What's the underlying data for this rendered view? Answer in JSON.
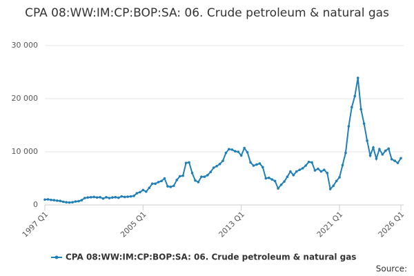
{
  "chart_data": {
    "type": "line",
    "title": "CPA 08:WW:IM:CP:BOP:SA: 06. Crude petroleum & natural gas",
    "categories": [
      "1997 Q1",
      null,
      null,
      null,
      null,
      null,
      null,
      null,
      null,
      null,
      null,
      null,
      null,
      null,
      null,
      null,
      null,
      null,
      null,
      null,
      null,
      null,
      null,
      null,
      null,
      null,
      null,
      null,
      null,
      null,
      null,
      null,
      "2005 Q1",
      null,
      null,
      null,
      null,
      null,
      null,
      null,
      null,
      null,
      null,
      null,
      null,
      null,
      null,
      null,
      null,
      null,
      null,
      null,
      null,
      null,
      null,
      null,
      null,
      null,
      null,
      null,
      null,
      null,
      null,
      null,
      "2013 Q1",
      null,
      null,
      null,
      null,
      null,
      null,
      null,
      null,
      null,
      null,
      null,
      null,
      null,
      null,
      null,
      null,
      null,
      null,
      null,
      null,
      null,
      null,
      null,
      null,
      null,
      null,
      null,
      null,
      null,
      null,
      null,
      "2021 Q1",
      null,
      null,
      null,
      null,
      null,
      null,
      null,
      null,
      null,
      null,
      null,
      null,
      null,
      null,
      null,
      null,
      null,
      null,
      null,
      "2026 Q1"
    ],
    "series": [
      {
        "name": "CPA 08:WW:IM:CP:BOP:SA: 06. Crude petroleum & natural gas",
        "color": "#1f7fb6",
        "values": [
          1000,
          1050,
          950,
          900,
          800,
          750,
          600,
          500,
          450,
          500,
          650,
          700,
          900,
          1300,
          1400,
          1450,
          1500,
          1400,
          1450,
          1200,
          1450,
          1300,
          1400,
          1450,
          1350,
          1600,
          1500,
          1550,
          1600,
          1700,
          2200,
          2400,
          2800,
          2500,
          3200,
          4000,
          4000,
          4300,
          4500,
          5000,
          3500,
          3400,
          3600,
          4700,
          5400,
          5500,
          7900,
          8000,
          6000,
          4600,
          4300,
          5300,
          5300,
          5600,
          6200,
          7000,
          7300,
          7700,
          8300,
          9800,
          10500,
          10400,
          10100,
          10000,
          9300,
          10700,
          9900,
          8000,
          7400,
          7600,
          7800,
          7100,
          5000,
          5100,
          4800,
          4500,
          3100,
          3800,
          4400,
          5300,
          6300,
          5600,
          6300,
          6600,
          6900,
          7400,
          8100,
          8000,
          6500,
          6800,
          6300,
          6600,
          6000,
          3000,
          3600,
          4500,
          5200,
          7500,
          9800,
          14800,
          18400,
          20500,
          23900,
          18000,
          15300,
          12100,
          9300,
          10800,
          8700,
          10500,
          9500,
          10200,
          10600,
          8600,
          8300,
          7900,
          8800
        ]
      }
    ],
    "ylim": [
      0,
      30000
    ],
    "yticks": [
      0,
      {
        "value": 10000,
        "label": "10 000"
      },
      {
        "value": 20000,
        "label": "20 000"
      },
      {
        "value": 30000,
        "label": "30 000"
      }
    ],
    "grid": true,
    "source_label": "Source:"
  }
}
